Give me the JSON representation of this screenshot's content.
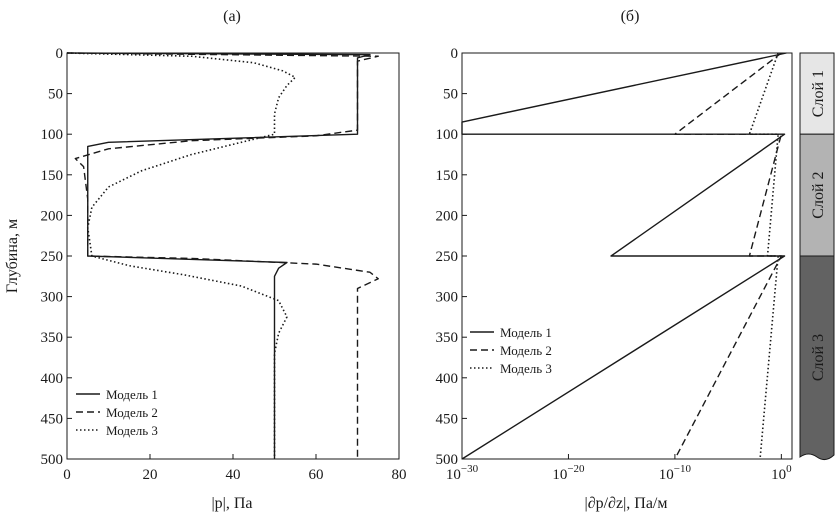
{
  "panel_a": {
    "label": "(а)"
  },
  "panel_b": {
    "label": "(б)"
  },
  "y_axis_label": "Глубина, м",
  "layers": [
    {
      "name": "Слой 1",
      "top": 0,
      "bottom": 100,
      "color": "#e6e6e6"
    },
    {
      "name": "Слой 2",
      "top": 100,
      "bottom": 250,
      "color": "#b3b3b3"
    },
    {
      "name": "Слой 3",
      "top": 250,
      "bottom": 500,
      "color": "#626262"
    }
  ],
  "legend": [
    {
      "label": "Модель 1",
      "dash": "solid"
    },
    {
      "label": "Модель 2",
      "dash": "dashed"
    },
    {
      "label": "Модель 3",
      "dash": "dotted"
    }
  ],
  "chart_data": [
    {
      "type": "line",
      "panel": "(а)",
      "xlabel": "|p|, Па",
      "ylabel": "Глубина, м",
      "xlim": [
        0,
        80
      ],
      "ylim": [
        500,
        0
      ],
      "xticks": [
        0,
        20,
        40,
        60,
        80
      ],
      "xtick_labels": [
        "0",
        "20",
        "40",
        "60",
        "80"
      ],
      "yticks": [
        0,
        50,
        100,
        150,
        200,
        250,
        300,
        350,
        400,
        450,
        500
      ],
      "ytick_labels": [
        "0",
        "50",
        "100",
        "150",
        "200",
        "250",
        "300",
        "350",
        "400",
        "450",
        "500"
      ],
      "legend_position": "bottom-left",
      "series": [
        {
          "name": "Модель 1",
          "dash": "solid",
          "points": [
            [
              0,
              0
            ],
            [
              73,
              2
            ],
            [
              70,
              6
            ],
            [
              70,
              100
            ],
            [
              10,
              110
            ],
            [
              5,
              115
            ],
            [
              5,
              250
            ],
            [
              53,
              258
            ],
            [
              51,
              265
            ],
            [
              50,
              275
            ],
            [
              50,
              500
            ]
          ]
        },
        {
          "name": "Модель 2",
          "dash": "dashed",
          "points": [
            [
              0,
              0
            ],
            [
              75,
              4
            ],
            [
              70,
              10
            ],
            [
              70,
              95
            ],
            [
              60,
              102
            ],
            [
              30,
              108
            ],
            [
              10,
              118
            ],
            [
              2,
              130
            ],
            [
              4,
              140
            ],
            [
              5,
              180
            ],
            [
              5,
              250
            ],
            [
              30,
              253
            ],
            [
              60,
              260
            ],
            [
              73,
              270
            ],
            [
              75,
              278
            ],
            [
              70,
              290
            ],
            [
              70,
              500
            ]
          ]
        },
        {
          "name": "Модель 3",
          "dash": "dotted",
          "points": [
            [
              0,
              0
            ],
            [
              30,
              4
            ],
            [
              45,
              12
            ],
            [
              52,
              22
            ],
            [
              55,
              30
            ],
            [
              53,
              40
            ],
            [
              51,
              55
            ],
            [
              50,
              75
            ],
            [
              50,
              100
            ],
            [
              42,
              110
            ],
            [
              30,
              125
            ],
            [
              18,
              145
            ],
            [
              10,
              165
            ],
            [
              6,
              190
            ],
            [
              5,
              215
            ],
            [
              6,
              250
            ],
            [
              15,
              262
            ],
            [
              28,
              273
            ],
            [
              42,
              287
            ],
            [
              51,
              305
            ],
            [
              53,
              325
            ],
            [
              51,
              345
            ],
            [
              50,
              370
            ],
            [
              50,
              500
            ]
          ]
        }
      ]
    },
    {
      "type": "line",
      "panel": "(б)",
      "xlabel": "|∂p/∂z|, Па/м",
      "ylabel": "",
      "xscale": "log",
      "xlim": [
        1e-30,
        10
      ],
      "ylim": [
        500,
        0
      ],
      "xticks": [
        1e-30,
        1e-20,
        1e-10,
        1
      ],
      "xtick_labels": [
        "10−30",
        "10−20",
        "10−10",
        "10⁰"
      ],
      "yticks": [
        0,
        50,
        100,
        150,
        200,
        250,
        300,
        350,
        400,
        450,
        500
      ],
      "ytick_labels": [
        "0",
        "50",
        "100",
        "150",
        "200",
        "250",
        "300",
        "350",
        "400",
        "450",
        "500"
      ],
      "legend_position": "center-left",
      "series": [
        {
          "name": "Модель 1",
          "dash": "solid",
          "points": [
            [
              3,
              0
            ],
            [
              1e-30,
              85
            ],
            [
              1e-30,
              100
            ],
            [
              2,
              100
            ],
            [
              1e-16,
              250
            ],
            [
              2,
              250
            ],
            [
              1e-30,
              500
            ]
          ]
        },
        {
          "name": "Модель 2",
          "dash": "dashed",
          "points": [
            [
              1,
              0
            ],
            [
              1e-10,
              100
            ],
            [
              1,
              100
            ],
            [
              0.001,
              250
            ],
            [
              1,
              250
            ],
            [
              1e-10,
              500
            ]
          ]
        },
        {
          "name": "Модель 3",
          "dash": "dotted",
          "points": [
            [
              0.5,
              0
            ],
            [
              0.001,
              100
            ],
            [
              0.5,
              100
            ],
            [
              0.05,
              250
            ],
            [
              0.5,
              250
            ],
            [
              0.01,
              500
            ]
          ]
        }
      ]
    }
  ]
}
